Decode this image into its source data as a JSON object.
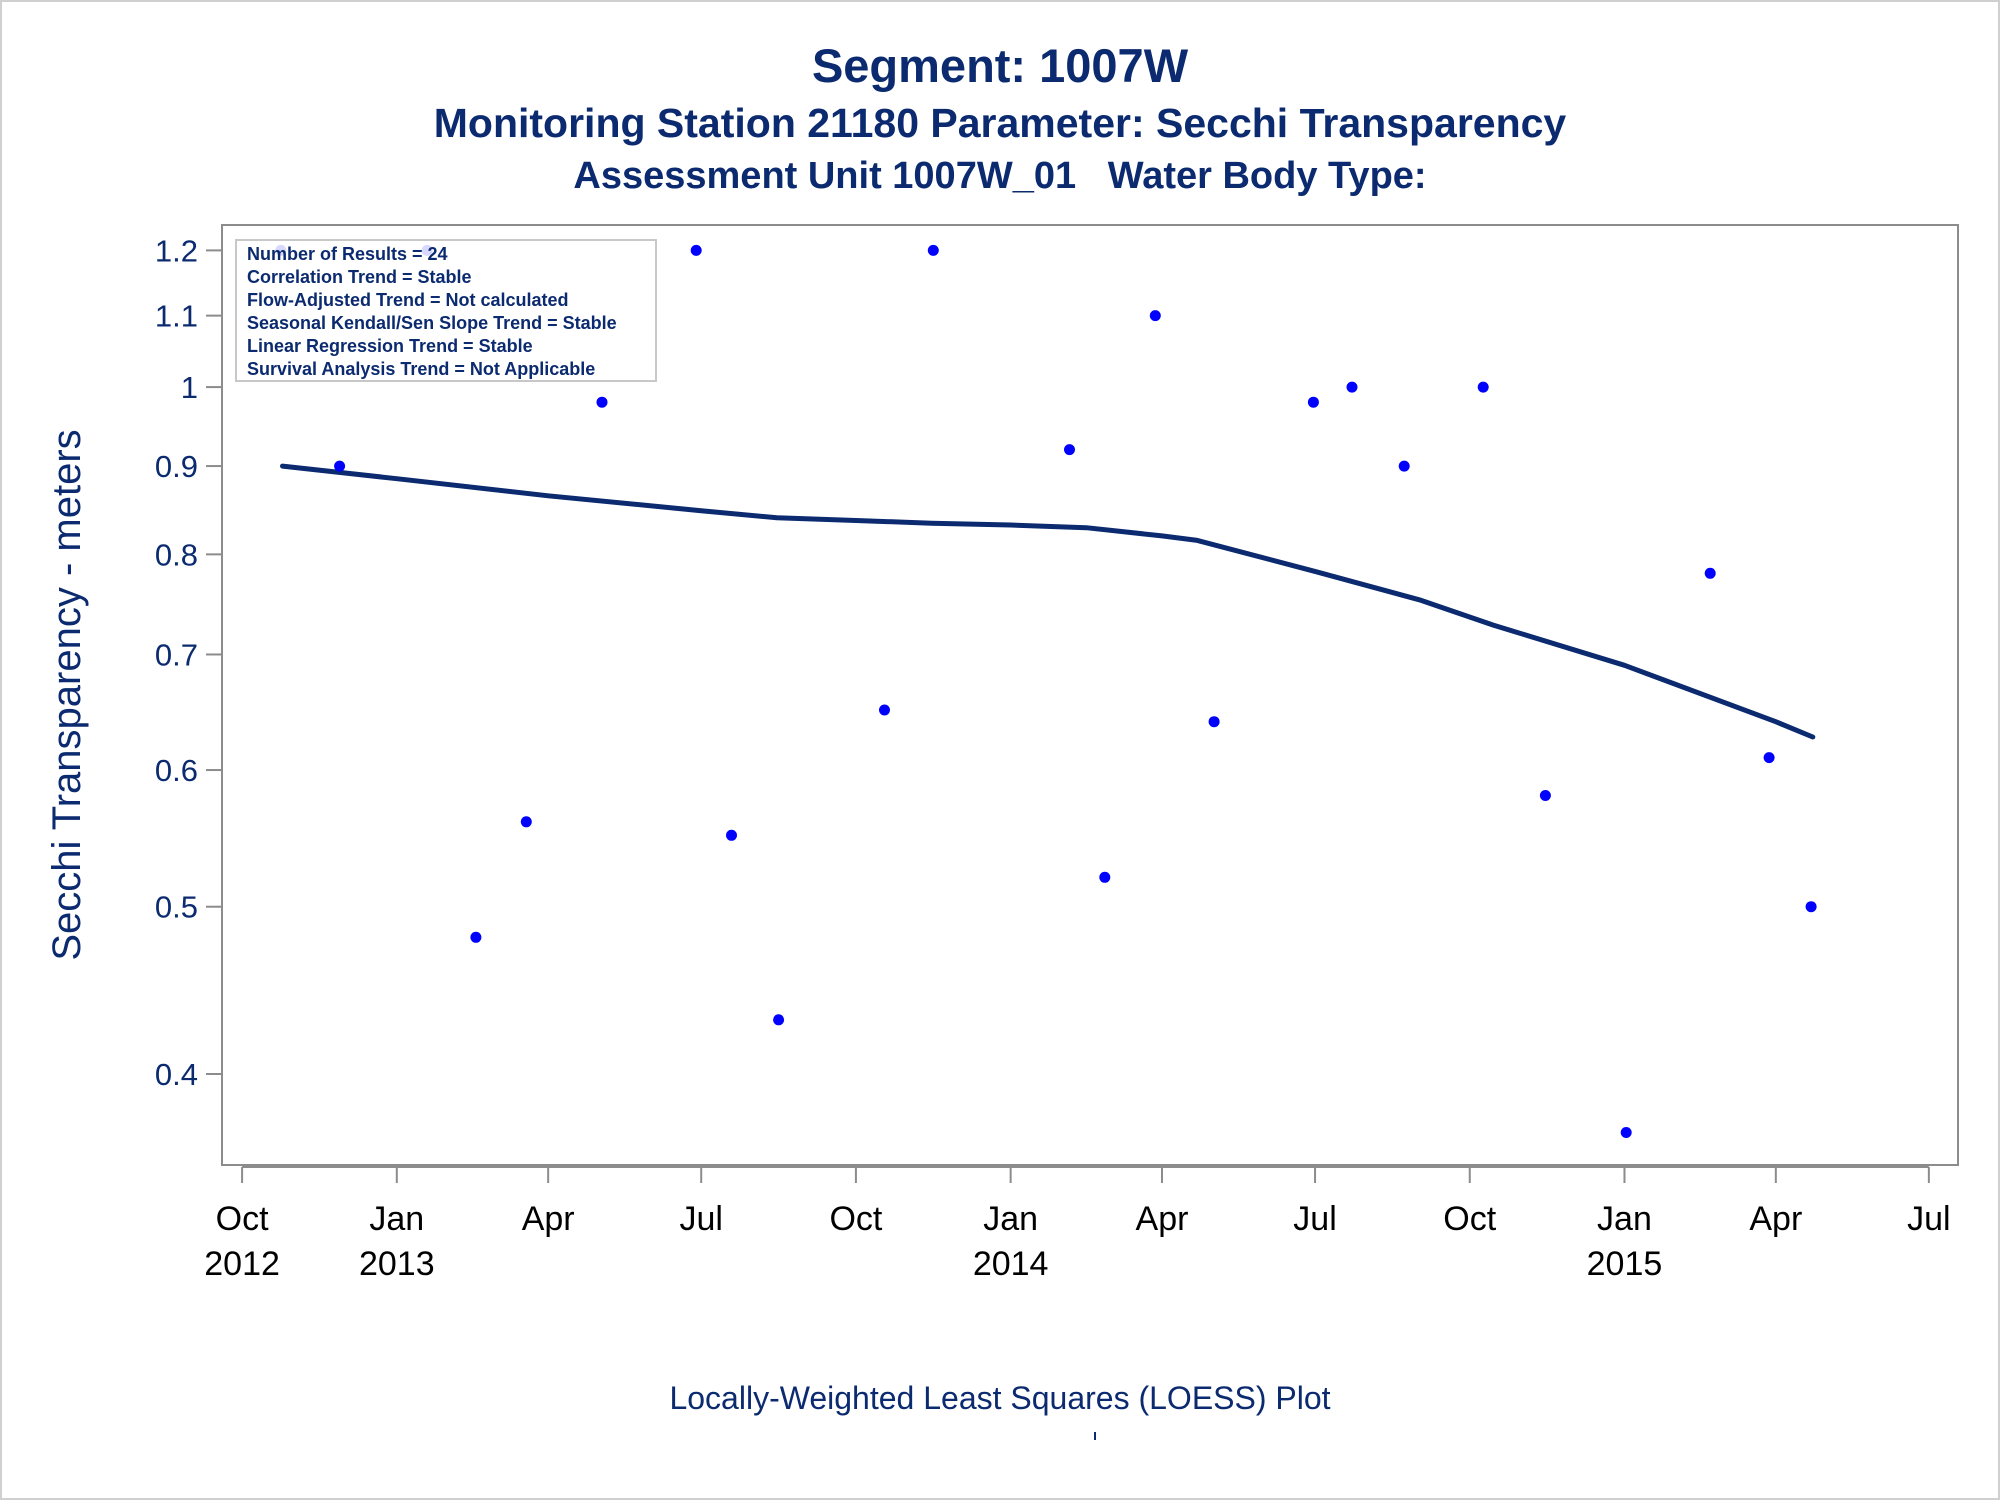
{
  "header": {
    "title": "Segment: 1007W",
    "subtitle": "Monitoring Station 21180 Parameter: Secchi Transparency",
    "subtitle2": "Assessment Unit 1007W_01   Water Body Type:"
  },
  "footnote": "Locally-Weighted Least Squares (LOESS) Plot",
  "colors": {
    "text": "#0b2a6f",
    "points": "#0000ff",
    "line": "#0b2a6f",
    "axes": "#8c8c8c"
  },
  "chart_data": {
    "type": "scatter",
    "ylabel": "Secchi Transparency - meters",
    "xlabel": "",
    "y_scale": "log",
    "ylim": [
      0.36,
      1.22
    ],
    "xlim": [
      "2012-09-25",
      "2015-07-10"
    ],
    "y_ticks": [
      0.4,
      0.5,
      0.6,
      0.7,
      0.8,
      0.9,
      1,
      1.1,
      1.2
    ],
    "y_tick_labels": [
      "0.4",
      "0.5",
      "0.6",
      "0.7",
      "0.8",
      "0.9",
      "1",
      "1.1",
      "1.2"
    ],
    "x_ticks": [
      {
        "date": "2012-10-01",
        "line1": "Oct",
        "line2": "2012"
      },
      {
        "date": "2013-01-01",
        "line1": "Jan",
        "line2": "2013"
      },
      {
        "date": "2013-04-01",
        "line1": "Apr",
        "line2": ""
      },
      {
        "date": "2013-07-01",
        "line1": "Jul",
        "line2": ""
      },
      {
        "date": "2013-10-01",
        "line1": "Oct",
        "line2": ""
      },
      {
        "date": "2014-01-01",
        "line1": "Jan",
        "line2": "2014"
      },
      {
        "date": "2014-04-01",
        "line1": "Apr",
        "line2": ""
      },
      {
        "date": "2014-07-01",
        "line1": "Jul",
        "line2": ""
      },
      {
        "date": "2014-10-01",
        "line1": "Oct",
        "line2": ""
      },
      {
        "date": "2015-01-01",
        "line1": "Jan",
        "line2": "2015"
      },
      {
        "date": "2015-04-01",
        "line1": "Apr",
        "line2": ""
      },
      {
        "date": "2015-07-01",
        "line1": "Jul",
        "line2": ""
      }
    ],
    "points": [
      {
        "x": "2012-10-24",
        "y": 1.2
      },
      {
        "x": "2012-11-28",
        "y": 0.9
      },
      {
        "x": "2013-01-19",
        "y": 1.2
      },
      {
        "x": "2013-02-17",
        "y": 0.48
      },
      {
        "x": "2013-03-19",
        "y": 0.56
      },
      {
        "x": "2013-05-03",
        "y": 0.98
      },
      {
        "x": "2013-06-28",
        "y": 1.2
      },
      {
        "x": "2013-07-19",
        "y": 0.55
      },
      {
        "x": "2013-08-16",
        "y": 0.43
      },
      {
        "x": "2013-10-18",
        "y": 0.65
      },
      {
        "x": "2013-11-16",
        "y": 1.2
      },
      {
        "x": "2014-02-05",
        "y": 0.92
      },
      {
        "x": "2014-02-26",
        "y": 0.52
      },
      {
        "x": "2014-03-28",
        "y": 1.1
      },
      {
        "x": "2014-05-02",
        "y": 0.64
      },
      {
        "x": "2014-06-30",
        "y": 0.98
      },
      {
        "x": "2014-07-23",
        "y": 1.0
      },
      {
        "x": "2014-08-23",
        "y": 0.9
      },
      {
        "x": "2014-10-09",
        "y": 1.0
      },
      {
        "x": "2014-11-15",
        "y": 0.58
      },
      {
        "x": "2015-01-02",
        "y": 0.37
      },
      {
        "x": "2015-02-21",
        "y": 0.78
      },
      {
        "x": "2015-03-28",
        "y": 0.61
      },
      {
        "x": "2015-04-22",
        "y": 0.5
      }
    ],
    "series": [
      {
        "type": "line",
        "fit": "LOESS",
        "points": [
          {
            "x": "2012-10-25",
            "y": 0.9
          },
          {
            "x": "2013-01-01",
            "y": 0.885
          },
          {
            "x": "2013-04-01",
            "y": 0.865
          },
          {
            "x": "2013-07-01",
            "y": 0.848
          },
          {
            "x": "2013-08-15",
            "y": 0.84
          },
          {
            "x": "2013-10-01",
            "y": 0.837
          },
          {
            "x": "2013-11-15",
            "y": 0.834
          },
          {
            "x": "2014-01-01",
            "y": 0.832
          },
          {
            "x": "2014-02-15",
            "y": 0.829
          },
          {
            "x": "2014-04-01",
            "y": 0.82
          },
          {
            "x": "2014-04-22",
            "y": 0.815
          },
          {
            "x": "2014-07-01",
            "y": 0.782
          },
          {
            "x": "2014-09-01",
            "y": 0.753
          },
          {
            "x": "2014-10-15",
            "y": 0.728
          },
          {
            "x": "2015-01-01",
            "y": 0.69
          },
          {
            "x": "2015-04-01",
            "y": 0.64
          },
          {
            "x": "2015-04-23",
            "y": 0.627
          }
        ]
      }
    ],
    "legend_position": "top-left",
    "legend": [
      "Number of Results = 24",
      "Correlation Trend = Stable",
      "Flow-Adjusted Trend = Not calculated",
      "Seasonal Kendall/Sen Slope Trend = Stable",
      "Linear Regression Trend = Stable",
      "Survival Analysis Trend = Not Applicable"
    ]
  }
}
